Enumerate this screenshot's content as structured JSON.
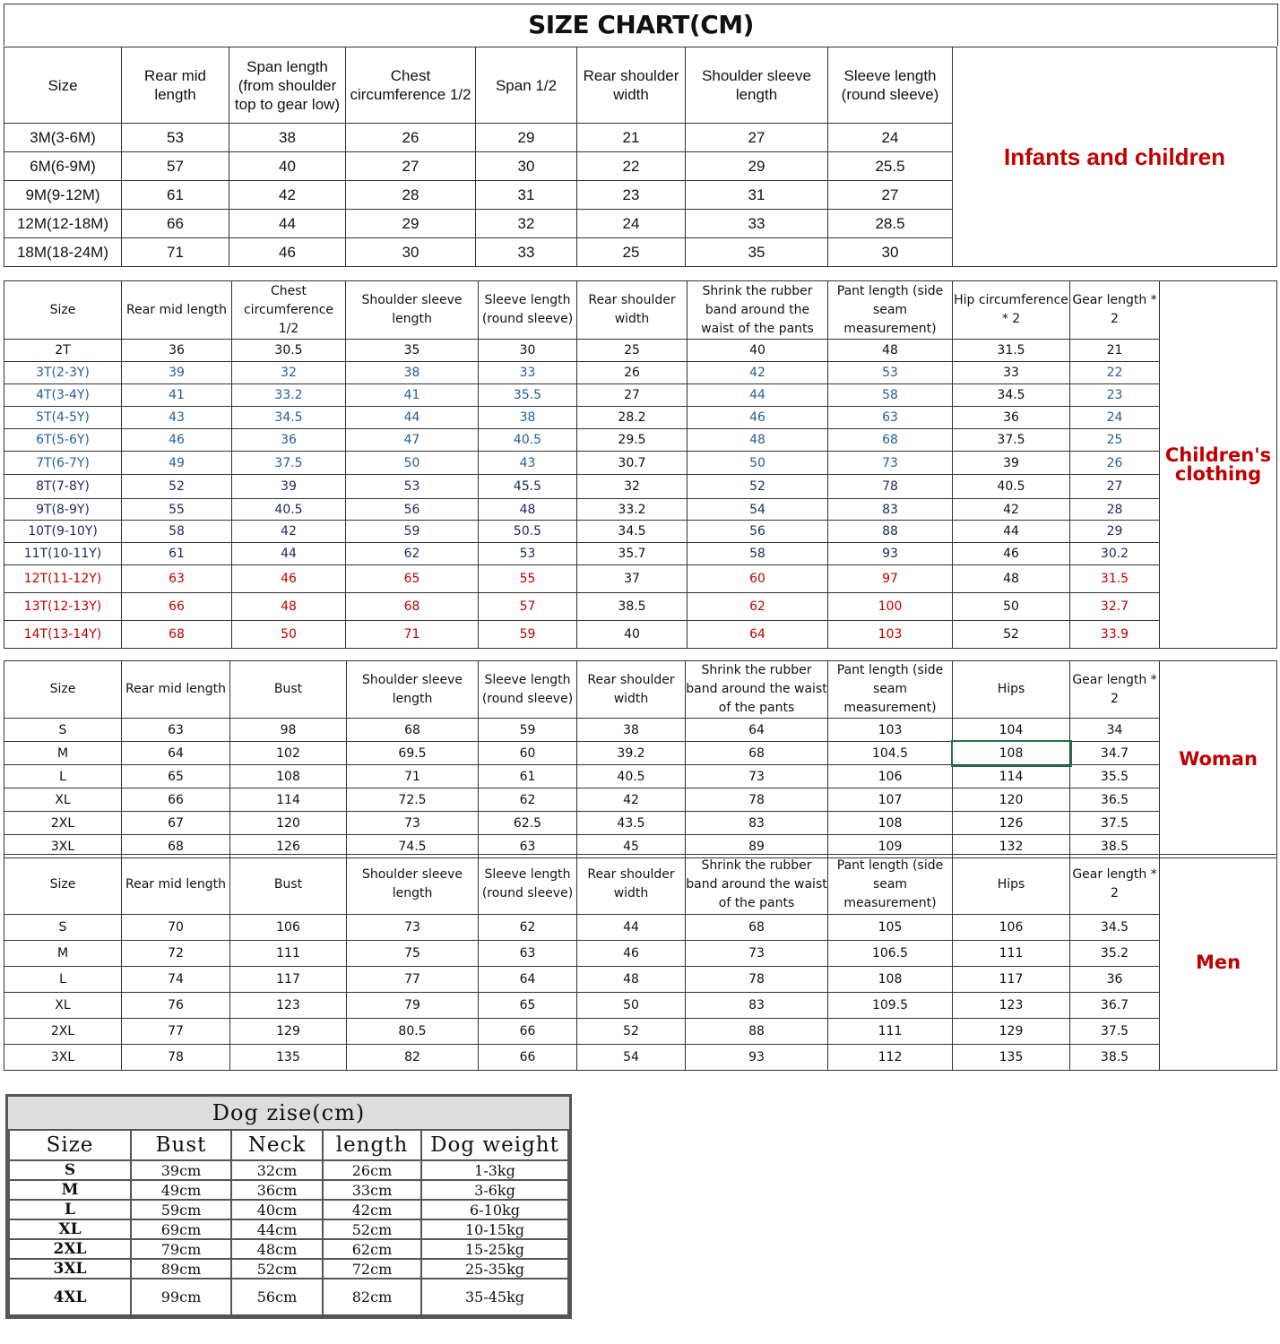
{
  "title": "SIZE CHART(CM)",
  "colors": {
    "red": "#c00000",
    "blue": "#1f5f9a",
    "navy": "#1c2a5e",
    "black": "#111111"
  },
  "infants": {
    "label": "Infants and children",
    "headers": [
      "Size",
      "Rear mid length",
      "Span length (from shoulder top to gear low)",
      "Chest circumference 1/2",
      "Span 1/2",
      "Rear shoulder width",
      "Shoulder sleeve length",
      "Sleeve length (round sleeve)"
    ],
    "rows": [
      [
        "3M(3-6M)",
        "53",
        "38",
        "26",
        "29",
        "21",
        "27",
        "24"
      ],
      [
        "6M(6-9M)",
        "57",
        "40",
        "27",
        "30",
        "22",
        "29",
        "25.5"
      ],
      [
        "9M(9-12M)",
        "61",
        "42",
        "28",
        "31",
        "23",
        "31",
        "27"
      ],
      [
        "12M(12-18M)",
        "66",
        "44",
        "29",
        "32",
        "24",
        "33",
        "28.5"
      ],
      [
        "18M(18-24M)",
        "71",
        "46",
        "30",
        "33",
        "25",
        "35",
        "30"
      ]
    ]
  },
  "children": {
    "label": "Children's clothing",
    "headers": [
      "Size",
      "Rear mid length",
      "Chest circumference 1/2",
      "Shoulder sleeve length",
      "Sleeve length (round sleeve)",
      "Rear shoulder width",
      "Shrink the rubber band around the waist of the pants",
      "Pant length (side seam measurement)",
      "Hip circumference * 2",
      "Gear length * 2"
    ],
    "row_colors": [
      "black",
      "blue",
      "blue",
      "blue",
      "blue",
      "blue",
      "navy",
      "navy",
      "navy",
      "navy",
      "red",
      "red",
      "red"
    ],
    "rows": [
      [
        "2T",
        "36",
        "30.5",
        "35",
        "30",
        "25",
        "40",
        "48",
        "31.5",
        "21"
      ],
      [
        "3T(2-3Y)",
        "39",
        "32",
        "38",
        "33",
        "26",
        "42",
        "53",
        "33",
        "22"
      ],
      [
        "4T(3-4Y)",
        "41",
        "33.2",
        "41",
        "35.5",
        "27",
        "44",
        "58",
        "34.5",
        "23"
      ],
      [
        "5T(4-5Y)",
        "43",
        "34.5",
        "44",
        "38",
        "28.2",
        "46",
        "63",
        "36",
        "24"
      ],
      [
        "6T(5-6Y)",
        "46",
        "36",
        "47",
        "40.5",
        "29.5",
        "48",
        "68",
        "37.5",
        "25"
      ],
      [
        "7T(6-7Y)",
        "49",
        "37.5",
        "50",
        "43",
        "30.7",
        "50",
        "73",
        "39",
        "26"
      ],
      [
        "8T(7-8Y)",
        "52",
        "39",
        "53",
        "45.5",
        "32",
        "52",
        "78",
        "40.5",
        "27"
      ],
      [
        "9T(8-9Y)",
        "55",
        "40.5",
        "56",
        "48",
        "33.2",
        "54",
        "83",
        "42",
        "28"
      ],
      [
        "10T(9-10Y)",
        "58",
        "42",
        "59",
        "50.5",
        "34.5",
        "56",
        "88",
        "44",
        "29"
      ],
      [
        "11T(10-11Y)",
        "61",
        "44",
        "62",
        "53",
        "35.7",
        "58",
        "93",
        "46",
        "30.2"
      ],
      [
        "12T(11-12Y)",
        "63",
        "46",
        "65",
        "55",
        "37",
        "60",
        "97",
        "48",
        "31.5"
      ],
      [
        "13T(12-13Y)",
        "66",
        "48",
        "68",
        "57",
        "38.5",
        "62",
        "100",
        "50",
        "32.7"
      ],
      [
        "14T(13-14Y)",
        "68",
        "50",
        "71",
        "59",
        "40",
        "64",
        "103",
        "52",
        "33.9"
      ]
    ]
  },
  "woman": {
    "label": "Woman",
    "headers": [
      "Size",
      "Rear mid length",
      "Bust",
      "Shoulder sleeve length",
      "Sleeve length (round sleeve)",
      "Rear shoulder width",
      "Shrink the rubber band around the waist of the pants",
      "Pant length (side seam measurement)",
      "Hips",
      "Gear length * 2"
    ],
    "rows": [
      [
        "S",
        "63",
        "98",
        "68",
        "59",
        "38",
        "64",
        "103",
        "104",
        "34"
      ],
      [
        "M",
        "64",
        "102",
        "69.5",
        "60",
        "39.2",
        "68",
        "104.5",
        "108",
        "34.7"
      ],
      [
        "L",
        "65",
        "108",
        "71",
        "61",
        "40.5",
        "73",
        "106",
        "114",
        "35.5"
      ],
      [
        "XL",
        "66",
        "114",
        "72.5",
        "62",
        "42",
        "78",
        "107",
        "120",
        "36.5"
      ],
      [
        "2XL",
        "67",
        "120",
        "73",
        "62.5",
        "43.5",
        "83",
        "108",
        "126",
        "37.5"
      ],
      [
        "3XL",
        "68",
        "126",
        "74.5",
        "63",
        "45",
        "89",
        "109",
        "132",
        "38.5"
      ]
    ]
  },
  "men": {
    "label": "Men",
    "headers": [
      "Size",
      "Rear mid length",
      "Bust",
      "Shoulder sleeve length",
      "Sleeve length (round sleeve)",
      "Rear shoulder width",
      "Shrink the rubber band around the waist of the pants",
      "Pant length (side seam measurement)",
      "Hips",
      "Gear length * 2"
    ],
    "rows": [
      [
        "S",
        "70",
        "106",
        "73",
        "62",
        "44",
        "68",
        "105",
        "106",
        "34.5"
      ],
      [
        "M",
        "72",
        "111",
        "75",
        "63",
        "46",
        "73",
        "106.5",
        "111",
        "35.2"
      ],
      [
        "L",
        "74",
        "117",
        "77",
        "64",
        "48",
        "78",
        "108",
        "117",
        "36"
      ],
      [
        "XL",
        "76",
        "123",
        "79",
        "65",
        "50",
        "83",
        "109.5",
        "123",
        "36.7"
      ],
      [
        "2XL",
        "77",
        "129",
        "80.5",
        "66",
        "52",
        "88",
        "111",
        "129",
        "37.5"
      ],
      [
        "3XL",
        "78",
        "135",
        "82",
        "66",
        "54",
        "93",
        "112",
        "135",
        "38.5"
      ]
    ]
  },
  "dog": {
    "title": "Dog zise(cm)",
    "headers": [
      "Size",
      "Bust",
      "Neck",
      "length",
      "Dog weight"
    ],
    "rows": [
      [
        "S",
        "39cm",
        "32cm",
        "26cm",
        "1-3kg"
      ],
      [
        "M",
        "49cm",
        "36cm",
        "33cm",
        "3-6kg"
      ],
      [
        "L",
        "59cm",
        "40cm",
        "42cm",
        "6-10kg"
      ],
      [
        "XL",
        "69cm",
        "44cm",
        "52cm",
        "10-15kg"
      ],
      [
        "2XL",
        "79cm",
        "48cm",
        "62cm",
        "15-25kg"
      ],
      [
        "3XL",
        "89cm",
        "52cm",
        "72cm",
        "25-35kg"
      ],
      [
        "4XL",
        "99cm",
        "56cm",
        "82cm",
        "35-45kg"
      ]
    ]
  }
}
